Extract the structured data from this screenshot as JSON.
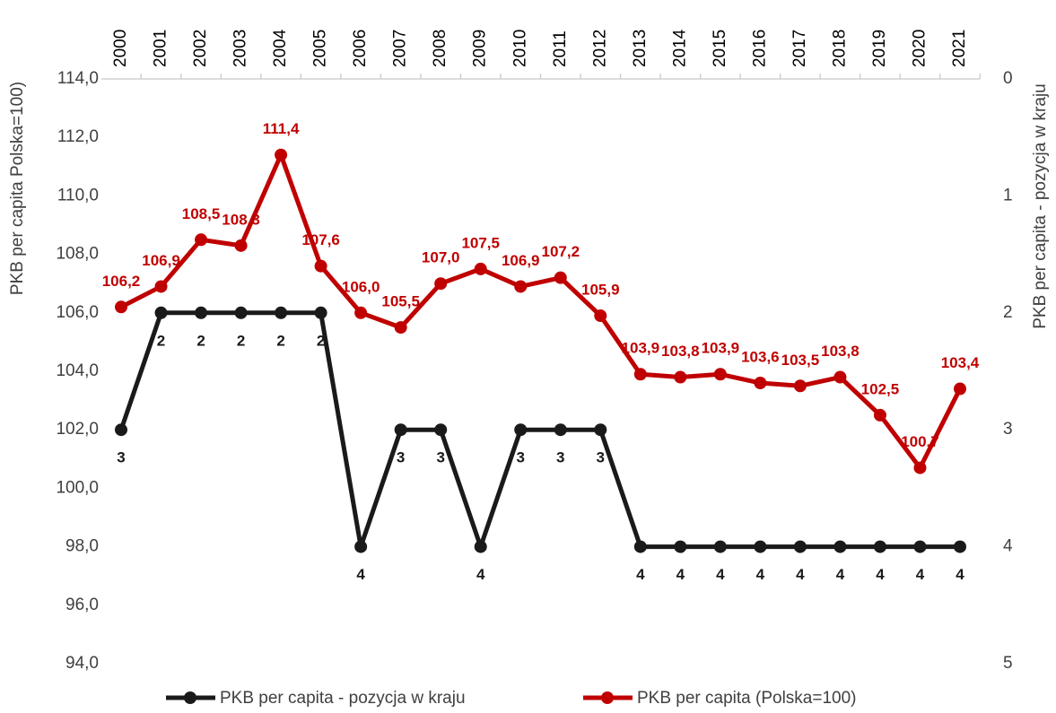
{
  "chart_data": {
    "type": "line",
    "y_label": "PKB per capita Polska=100)",
    "y2_label": "PKB per capita - pozycja w kraju",
    "categories": [
      "2000",
      "2001",
      "2002",
      "2003",
      "2004",
      "2005",
      "2006",
      "2007",
      "2008",
      "2009",
      "2010",
      "2011",
      "2012",
      "2013",
      "2014",
      "2015",
      "2016",
      "2017",
      "2018",
      "2019",
      "2020",
      "2021"
    ],
    "series": [
      {
        "name": "PKB per capita - pozycja w kraju",
        "color": "#1a1a1a",
        "axis": "y2",
        "values": [
          3,
          2,
          2,
          2,
          2,
          2,
          4,
          3,
          3,
          4,
          3,
          3,
          3,
          4,
          4,
          4,
          4,
          4,
          4,
          4,
          4,
          4
        ]
      },
      {
        "name": "PKB per capita (Polska=100)",
        "color": "#c00000",
        "values": [
          106.2,
          106.9,
          108.5,
          108.3,
          111.4,
          107.6,
          106.0,
          105.5,
          107.0,
          107.5,
          106.9,
          107.2,
          105.9,
          103.9,
          103.8,
          103.9,
          103.6,
          103.5,
          103.8,
          102.5,
          100.7,
          103.4
        ],
        "value_labels": [
          "106,2",
          "106,9",
          "108,5",
          "108,3",
          "111,4",
          "107,6",
          "106,0",
          "105,5",
          "107,0",
          "107,5",
          "106,9",
          "107,2",
          "105,9",
          "103,9",
          "103,8",
          "103,9",
          "103,6",
          "103,5",
          "103,8",
          "102,5",
          "100,7",
          "103,4"
        ]
      }
    ],
    "ylim": [
      94,
      114
    ],
    "yticks": [
      {
        "value": 94,
        "label": "94,0"
      },
      {
        "value": 96,
        "label": "96,0"
      },
      {
        "value": 98,
        "label": "98,0"
      },
      {
        "value": 100,
        "label": "100,0"
      },
      {
        "value": 102,
        "label": "102,0"
      },
      {
        "value": 104,
        "label": "104,0"
      },
      {
        "value": 106,
        "label": "106,0"
      },
      {
        "value": 108,
        "label": "108,0"
      },
      {
        "value": 110,
        "label": "110,0"
      },
      {
        "value": 112,
        "label": "112,0"
      },
      {
        "value": 114,
        "label": "114,0"
      }
    ],
    "y2lim": [
      5,
      0
    ],
    "y2ticks": [
      0,
      1,
      2,
      3,
      4,
      5
    ],
    "legend": "bottom"
  }
}
